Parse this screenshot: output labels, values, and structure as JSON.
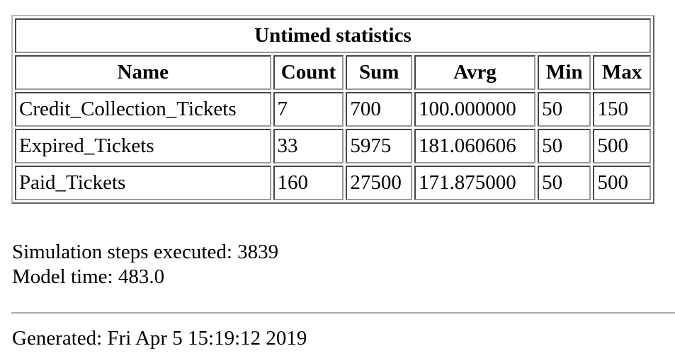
{
  "table": {
    "title": "Untimed statistics",
    "columns": [
      "Name",
      "Count",
      "Sum",
      "Avrg",
      "Min",
      "Max"
    ],
    "rows": [
      [
        "Credit_Collection_Tickets",
        "7",
        "700",
        "100.000000",
        "50",
        "150"
      ],
      [
        "Expired_Tickets",
        "33",
        "5975",
        "181.060606",
        "50",
        "500"
      ],
      [
        "Paid_Tickets",
        "160",
        "27500",
        "171.875000",
        "50",
        "500"
      ]
    ]
  },
  "summary": {
    "steps_label": "Simulation steps executed:",
    "steps_value": "3839",
    "model_time_label": "Model time:",
    "model_time_value": "483.0"
  },
  "footer": {
    "generated_label": "Generated:",
    "generated_value": "Fri Apr 5 15:19:12 2019"
  }
}
